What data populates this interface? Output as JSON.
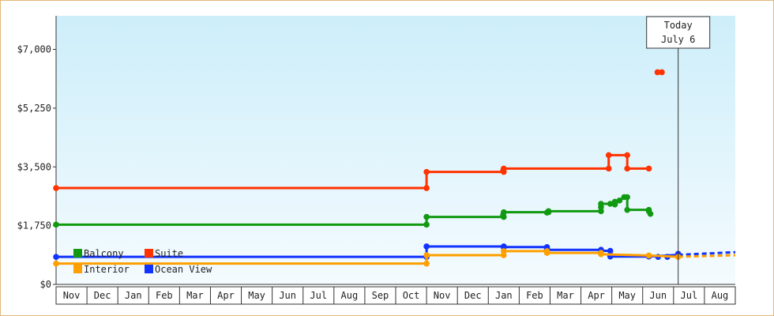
{
  "chart_data": {
    "type": "line",
    "title": "",
    "xlabel": "",
    "ylabel": "",
    "ylim": [
      0,
      8000
    ],
    "y_ticks": [
      {
        "value": 0,
        "label": "$0"
      },
      {
        "value": 1750,
        "label": "$1,750"
      },
      {
        "value": 3500,
        "label": "$3,500"
      },
      {
        "value": 5250,
        "label": "$5,250"
      },
      {
        "value": 7000,
        "label": "$7,000"
      }
    ],
    "x_labels": [
      "Nov",
      "Dec",
      "Jan",
      "Feb",
      "Mar",
      "Apr",
      "May",
      "Jun",
      "Jul",
      "Aug",
      "Sep",
      "Oct",
      "Nov",
      "Dec",
      "Jan",
      "Feb",
      "Mar",
      "Apr",
      "May",
      "Jun",
      "Jul",
      "Aug"
    ],
    "x_range": [
      0,
      22
    ],
    "today": {
      "line1": "Today",
      "line2": "July 6",
      "x": 20.15
    },
    "legend": [
      {
        "name": "Balcony",
        "color": "#119911"
      },
      {
        "name": "Suite",
        "color": "#ff3300"
      },
      {
        "name": "Interior",
        "color": "#ffa000"
      },
      {
        "name": "Ocean View",
        "color": "#1133ff"
      }
    ],
    "series": [
      {
        "name": "Suite",
        "color": "#ff3300",
        "points": [
          [
            0,
            2870
          ],
          [
            12,
            2870
          ],
          [
            12,
            3350
          ],
          [
            14.5,
            3350
          ],
          [
            14.5,
            3450
          ],
          [
            17.9,
            3450
          ],
          [
            17.9,
            3850
          ],
          [
            18.5,
            3850
          ],
          [
            18.5,
            3450
          ],
          [
            19.2,
            3450
          ]
        ],
        "extra_markers": [
          [
            14.48,
            3380
          ],
          [
            19.48,
            6320
          ],
          [
            19.62,
            6320
          ]
        ],
        "projection": []
      },
      {
        "name": "Balcony",
        "color": "#119911",
        "points": [
          [
            0,
            1780
          ],
          [
            12,
            1780
          ],
          [
            12,
            2010
          ],
          [
            14.5,
            2010
          ],
          [
            14.5,
            2150
          ],
          [
            15.95,
            2150
          ],
          [
            15.95,
            2180
          ],
          [
            17.65,
            2180
          ],
          [
            17.65,
            2400
          ],
          [
            17.95,
            2400
          ],
          [
            18.1,
            2380
          ],
          [
            18.25,
            2500
          ],
          [
            18.4,
            2600
          ],
          [
            18.5,
            2600
          ],
          [
            18.5,
            2220
          ],
          [
            19.2,
            2220
          ],
          [
            19.25,
            2100
          ]
        ],
        "extra_markers": [
          [
            14.48,
            2070
          ],
          [
            15.9,
            2140
          ],
          [
            17.65,
            2300
          ],
          [
            18.1,
            2460
          ],
          [
            19.2,
            2180
          ]
        ],
        "projection": []
      },
      {
        "name": "Ocean View",
        "color": "#1133ff",
        "points": [
          [
            0,
            820
          ],
          [
            12,
            820
          ],
          [
            12,
            1130
          ],
          [
            14.5,
            1130
          ],
          [
            14.5,
            1110
          ],
          [
            15.9,
            1110
          ],
          [
            15.9,
            1030
          ],
          [
            17.65,
            1030
          ],
          [
            17.65,
            1000
          ],
          [
            17.95,
            1000
          ],
          [
            17.95,
            830
          ],
          [
            19.2,
            830
          ],
          [
            20.15,
            880
          ]
        ],
        "extra_markers": [
          [
            15.9,
            1060
          ],
          [
            17.95,
            880
          ],
          [
            19.5,
            820
          ],
          [
            19.8,
            820
          ],
          [
            20.15,
            910
          ]
        ],
        "projection": [
          [
            20.15,
            880
          ],
          [
            22,
            960
          ]
        ]
      },
      {
        "name": "Interior",
        "color": "#ffa000",
        "points": [
          [
            0,
            620
          ],
          [
            12,
            620
          ],
          [
            12,
            870
          ],
          [
            14.5,
            870
          ],
          [
            14.5,
            990
          ],
          [
            15.9,
            990
          ],
          [
            15.9,
            940
          ],
          [
            17.65,
            940
          ],
          [
            17.65,
            900
          ],
          [
            19.2,
            860
          ],
          [
            20.15,
            820
          ]
        ],
        "extra_markers": [],
        "projection": [
          [
            20.15,
            820
          ],
          [
            22,
            870
          ]
        ]
      }
    ]
  }
}
